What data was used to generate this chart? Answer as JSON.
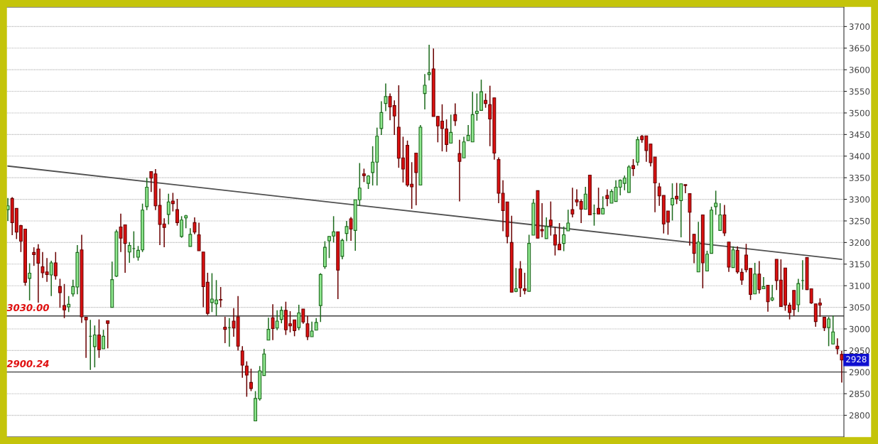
{
  "chart_data": {
    "type": "candlestick",
    "categories": [
      null,
      null,
      null,
      null,
      null,
      null,
      null,
      null,
      null,
      null,
      null,
      null,
      null,
      null,
      null,
      null,
      null,
      null,
      null,
      null,
      null,
      null,
      null,
      null,
      null,
      null,
      null,
      null,
      null,
      null,
      null,
      null,
      null,
      null,
      null,
      null,
      null,
      null,
      null,
      null,
      null,
      null,
      null,
      null,
      null,
      null,
      null,
      null,
      null,
      null,
      null,
      null,
      null,
      null,
      null,
      null,
      null,
      null,
      null,
      null,
      null,
      null,
      null,
      null,
      null,
      null,
      null,
      null,
      null,
      null,
      null,
      null,
      null,
      null,
      null,
      null,
      null,
      null,
      null,
      null,
      null,
      null,
      null,
      null,
      null,
      null,
      null,
      null,
      null,
      null,
      null,
      null,
      null,
      null,
      null,
      null,
      null,
      null,
      null,
      null,
      null,
      null,
      null,
      null,
      null,
      null,
      null,
      null,
      null,
      null,
      null,
      null,
      null,
      null,
      null,
      null,
      null,
      null,
      null,
      null,
      null,
      null,
      null,
      null,
      null,
      null,
      null,
      null,
      null,
      null,
      null,
      null,
      null,
      null,
      null,
      null,
      null,
      null,
      null,
      null,
      null,
      null,
      null,
      null,
      null,
      null,
      null,
      null,
      null,
      null,
      null,
      null,
      null,
      null,
      null,
      null,
      null,
      null,
      null,
      null,
      null,
      null,
      null,
      null,
      null,
      null,
      null,
      null,
      null,
      null,
      null,
      null,
      null,
      null,
      null,
      null,
      null,
      null,
      null,
      null,
      null,
      null,
      null,
      null,
      null,
      null,
      null,
      null,
      null,
      null,
      null,
      null,
      null
    ],
    "ohlc": [
      [
        3276,
        3303,
        3250,
        3285
      ],
      [
        3302,
        3305,
        3217,
        3246
      ],
      [
        3279,
        3279,
        3208,
        3224
      ],
      [
        3239,
        3241,
        3178,
        3203
      ],
      [
        3231,
        3231,
        3100,
        3108
      ],
      [
        3117,
        3152,
        3066,
        3129
      ],
      [
        3177,
        3189,
        3146,
        3172
      ],
      [
        3185,
        3196,
        3061,
        3152
      ],
      [
        3144,
        3178,
        3118,
        3130
      ],
      [
        3132,
        3164,
        3109,
        3126
      ],
      [
        3125,
        3158,
        3076,
        3153
      ],
      [
        3153,
        3178,
        3114,
        3123
      ],
      [
        3098,
        3116,
        3049,
        3084
      ],
      [
        3054,
        3104,
        3025,
        3044
      ],
      [
        3051,
        3076,
        3039,
        3057
      ],
      [
        3081,
        3114,
        3075,
        3098
      ],
      [
        3097,
        3194,
        3080,
        3177
      ],
      [
        3183,
        3218,
        3014,
        3028
      ],
      [
        3027,
        3027,
        2933,
        3021
      ],
      [
        2983,
        3021,
        2905,
        2983
      ],
      [
        2959,
        3008,
        2911,
        2986
      ],
      [
        2986,
        3022,
        2933,
        2952
      ],
      [
        2954,
        2998,
        2954,
        2983
      ],
      [
        3019,
        3019,
        2955,
        3013
      ],
      [
        3050,
        3156,
        3050,
        3114
      ],
      [
        3122,
        3230,
        3120,
        3225
      ],
      [
        3236,
        3267,
        3178,
        3210
      ],
      [
        3241,
        3241,
        3130,
        3198
      ],
      [
        3178,
        3201,
        3153,
        3193
      ],
      [
        3186,
        3226,
        3164,
        3186
      ],
      [
        3166,
        3192,
        3158,
        3182
      ],
      [
        3183,
        3290,
        3178,
        3275
      ],
      [
        3283,
        3350,
        3275,
        3328
      ],
      [
        3364,
        3364,
        3317,
        3349
      ],
      [
        3359,
        3370,
        3275,
        3285
      ],
      [
        3286,
        3325,
        3194,
        3242
      ],
      [
        3243,
        3256,
        3189,
        3235
      ],
      [
        3265,
        3313,
        3242,
        3294
      ],
      [
        3296,
        3315,
        3272,
        3290
      ],
      [
        3276,
        3301,
        3239,
        3246
      ],
      [
        3214,
        3261,
        3211,
        3252
      ],
      [
        3257,
        3264,
        3233,
        3262
      ],
      [
        3191,
        3233,
        3191,
        3219
      ],
      [
        3246,
        3258,
        3219,
        3224
      ],
      [
        3218,
        3246,
        3181,
        3181
      ],
      [
        3178,
        3178,
        3050,
        3098
      ],
      [
        3108,
        3130,
        3032,
        3036
      ],
      [
        3061,
        3129,
        3039,
        3069
      ],
      [
        3058,
        3113,
        3031,
        3067
      ],
      [
        3068,
        3097,
        3050,
        3067
      ],
      [
        3004,
        3028,
        2967,
        2999
      ],
      [
        3003,
        3025,
        2959,
        3003
      ],
      [
        3018,
        3048,
        2982,
        3002
      ],
      [
        3028,
        3076,
        2950,
        2960
      ],
      [
        2949,
        2960,
        2887,
        2916
      ],
      [
        2914,
        2925,
        2843,
        2893
      ],
      [
        2876,
        2908,
        2856,
        2862
      ],
      [
        2787,
        2856,
        2787,
        2839
      ],
      [
        2838,
        2914,
        2834,
        2903
      ],
      [
        2892,
        2954,
        2892,
        2942
      ],
      [
        2974,
        3026,
        2974,
        2999
      ],
      [
        3026,
        3057,
        2974,
        3001
      ],
      [
        3002,
        3043,
        2997,
        3018
      ],
      [
        3022,
        3052,
        3013,
        3043
      ],
      [
        3043,
        3063,
        2986,
        2998
      ],
      [
        3012,
        3041,
        2992,
        3007
      ],
      [
        3021,
        3021,
        2983,
        2996
      ],
      [
        3003,
        3056,
        2997,
        3037
      ],
      [
        3046,
        3046,
        3012,
        3016
      ],
      [
        3012,
        3030,
        2974,
        2982
      ],
      [
        2982,
        3017,
        2982,
        2995
      ],
      [
        2997,
        3025,
        2997,
        3015
      ],
      [
        3054,
        3129,
        3016,
        3126
      ],
      [
        3144,
        3203,
        3139,
        3189
      ],
      [
        3204,
        3214,
        3164,
        3214
      ],
      [
        3215,
        3261,
        3200,
        3225
      ],
      [
        3225,
        3225,
        3069,
        3136
      ],
      [
        3168,
        3209,
        3161,
        3205
      ],
      [
        3221,
        3250,
        3203,
        3237
      ],
      [
        3255,
        3259,
        3204,
        3231
      ],
      [
        3228,
        3299,
        3181,
        3299
      ],
      [
        3299,
        3384,
        3285,
        3326
      ],
      [
        3359,
        3371,
        3340,
        3355
      ],
      [
        3337,
        3356,
        3324,
        3354
      ],
      [
        3362,
        3423,
        3332,
        3386
      ],
      [
        3386,
        3466,
        3332,
        3446
      ],
      [
        3464,
        3527,
        3449,
        3501
      ],
      [
        3522,
        3568,
        3504,
        3538
      ],
      [
        3538,
        3545,
        3483,
        3514
      ],
      [
        3517,
        3529,
        3449,
        3493
      ],
      [
        3467,
        3564,
        3373,
        3395
      ],
      [
        3396,
        3445,
        3339,
        3370
      ],
      [
        3425,
        3436,
        3329,
        3333
      ],
      [
        3335,
        3386,
        3278,
        3329
      ],
      [
        3407,
        3407,
        3286,
        3362
      ],
      [
        3333,
        3472,
        3333,
        3467
      ],
      [
        3545,
        3590,
        3508,
        3564
      ],
      [
        3589,
        3658,
        3575,
        3593
      ],
      [
        3602,
        3649,
        3492,
        3492
      ],
      [
        3492,
        3492,
        3432,
        3470
      ],
      [
        3481,
        3520,
        3411,
        3464
      ],
      [
        3463,
        3485,
        3410,
        3427
      ],
      [
        3430,
        3496,
        3430,
        3455
      ],
      [
        3496,
        3522,
        3470,
        3482
      ],
      [
        3406,
        3438,
        3295,
        3388
      ],
      [
        3396,
        3445,
        3396,
        3433
      ],
      [
        3436,
        3472,
        3436,
        3448
      ],
      [
        3433,
        3549,
        3433,
        3496
      ],
      [
        3499,
        3545,
        3482,
        3504
      ],
      [
        3506,
        3577,
        3506,
        3549
      ],
      [
        3529,
        3545,
        3512,
        3522
      ],
      [
        3519,
        3563,
        3423,
        3486
      ],
      [
        3535,
        3535,
        3392,
        3407
      ],
      [
        3392,
        3397,
        3291,
        3314
      ],
      [
        3314,
        3344,
        3226,
        3274
      ],
      [
        3294,
        3294,
        3198,
        3214
      ],
      [
        3200,
        3262,
        3085,
        3085
      ],
      [
        3087,
        3141,
        3085,
        3093
      ],
      [
        3139,
        3157,
        3074,
        3095
      ],
      [
        3093,
        3130,
        3080,
        3089
      ],
      [
        3087,
        3218,
        3087,
        3198
      ],
      [
        3217,
        3301,
        3217,
        3291
      ],
      [
        3320,
        3320,
        3210,
        3210
      ],
      [
        3230,
        3291,
        3212,
        3227
      ],
      [
        3209,
        3258,
        3209,
        3237
      ],
      [
        3252,
        3295,
        3216,
        3239
      ],
      [
        3218,
        3236,
        3170,
        3194
      ],
      [
        3196,
        3245,
        3183,
        3183
      ],
      [
        3198,
        3237,
        3180,
        3218
      ],
      [
        3227,
        3276,
        3227,
        3245
      ],
      [
        3276,
        3327,
        3258,
        3266
      ],
      [
        3299,
        3323,
        3284,
        3294
      ],
      [
        3295,
        3300,
        3245,
        3277
      ],
      [
        3277,
        3329,
        3277,
        3312
      ],
      [
        3356,
        3356,
        3264,
        3264
      ],
      [
        3267,
        3288,
        3239,
        3267
      ],
      [
        3279,
        3327,
        3266,
        3266
      ],
      [
        3266,
        3307,
        3266,
        3279
      ],
      [
        3309,
        3323,
        3284,
        3302
      ],
      [
        3291,
        3323,
        3291,
        3318
      ],
      [
        3295,
        3344,
        3295,
        3328
      ],
      [
        3328,
        3346,
        3309,
        3344
      ],
      [
        3337,
        3355,
        3321,
        3349
      ],
      [
        3316,
        3379,
        3316,
        3375
      ],
      [
        3378,
        3393,
        3354,
        3371
      ],
      [
        3386,
        3445,
        3378,
        3438
      ],
      [
        3446,
        3449,
        3431,
        3438
      ],
      [
        3447,
        3447,
        3387,
        3413
      ],
      [
        3428,
        3428,
        3376,
        3385
      ],
      [
        3398,
        3398,
        3270,
        3338
      ],
      [
        3329,
        3338,
        3285,
        3308
      ],
      [
        3309,
        3309,
        3221,
        3243
      ],
      [
        3273,
        3273,
        3218,
        3247
      ],
      [
        3287,
        3337,
        3251,
        3302
      ],
      [
        3307,
        3338,
        3289,
        3301
      ],
      [
        3297,
        3336,
        3212,
        3336
      ],
      [
        3334,
        3334,
        3314,
        3332
      ],
      [
        3313,
        3313,
        3193,
        3270
      ],
      [
        3219,
        3219,
        3152,
        3175
      ],
      [
        3132,
        3248,
        3132,
        3201
      ],
      [
        3264,
        3264,
        3094,
        3153
      ],
      [
        3134,
        3181,
        3134,
        3173
      ],
      [
        3175,
        3283,
        3175,
        3275
      ],
      [
        3283,
        3320,
        3264,
        3291
      ],
      [
        3228,
        3291,
        3228,
        3264
      ],
      [
        3264,
        3287,
        3215,
        3222
      ],
      [
        3201,
        3201,
        3132,
        3143
      ],
      [
        3142,
        3191,
        3142,
        3183
      ],
      [
        3182,
        3191,
        3128,
        3132
      ],
      [
        3131,
        3140,
        3102,
        3113
      ],
      [
        3171,
        3197,
        3131,
        3137
      ],
      [
        3140,
        3140,
        3067,
        3080
      ],
      [
        3081,
        3153,
        3081,
        3127
      ],
      [
        3127,
        3157,
        3082,
        3091
      ],
      [
        3093,
        3120,
        3093,
        3098
      ],
      [
        3101,
        3101,
        3040,
        3063
      ],
      [
        3067,
        3102,
        3064,
        3072
      ],
      [
        3161,
        3161,
        3090,
        3112
      ],
      [
        3113,
        3161,
        3052,
        3052
      ],
      [
        3141,
        3141,
        3042,
        3055
      ],
      [
        3055,
        3061,
        3022,
        3038
      ],
      [
        3089,
        3089,
        3030,
        3045
      ],
      [
        3056,
        3116,
        3039,
        3105
      ],
      [
        3112,
        3159,
        3091,
        3112
      ],
      [
        3165,
        3165,
        3090,
        3091
      ],
      [
        3093,
        3093,
        3058,
        3060
      ],
      [
        3058,
        3058,
        3005,
        3017
      ],
      [
        3060,
        3071,
        3028,
        3055
      ],
      [
        3027,
        3027,
        2995,
        3003
      ],
      [
        3003,
        3028,
        2960,
        3023
      ],
      [
        2965,
        3031,
        2965,
        2993
      ],
      [
        2960,
        2978,
        2941,
        2954
      ],
      [
        2941,
        2949,
        2876,
        2928
      ]
    ],
    "series": [
      {
        "type": "line",
        "values": [
          3377,
          null,
          null,
          null,
          null,
          null,
          null,
          null,
          null,
          null,
          null,
          null,
          null,
          null,
          null,
          null,
          null,
          null,
          null,
          null,
          null,
          null,
          null,
          null,
          null,
          null,
          null,
          null,
          null,
          null,
          null,
          null,
          null,
          null,
          null,
          null,
          null,
          null,
          null,
          null,
          null,
          null,
          null,
          null,
          null,
          null,
          null,
          null,
          null,
          null,
          null,
          null,
          null,
          null,
          null,
          null,
          null,
          null,
          null,
          null,
          null,
          null,
          null,
          null,
          null,
          null,
          null,
          null,
          null,
          null,
          null,
          null,
          null,
          null,
          null,
          null,
          null,
          null,
          null,
          null,
          null,
          null,
          null,
          null,
          null,
          null,
          null,
          null,
          null,
          null,
          null,
          null,
          null,
          null,
          null,
          null,
          null,
          null,
          null,
          null,
          null,
          null,
          null,
          null,
          null,
          null,
          null,
          null,
          null,
          null,
          null,
          null,
          null,
          null,
          null,
          null,
          null,
          null,
          null,
          null,
          null,
          null,
          null,
          null,
          null,
          null,
          null,
          null,
          null,
          null,
          null,
          null,
          null,
          null,
          null,
          null,
          null,
          null,
          null,
          null,
          null,
          null,
          null,
          null,
          null,
          null,
          null,
          null,
          null,
          null,
          null,
          null,
          null,
          null,
          null,
          null,
          null,
          null,
          null,
          null,
          null,
          null,
          null,
          null,
          null,
          null,
          null,
          null,
          null,
          null,
          null,
          null,
          null,
          null,
          null,
          null,
          null,
          null,
          null,
          null,
          null,
          null,
          null,
          null,
          null,
          null,
          null,
          null,
          null,
          null,
          null,
          null,
          3161
        ],
        "color": "#505050"
      }
    ],
    "ylim": [
      2750,
      3745
    ],
    "yticks": [
      2800,
      2850,
      2900,
      2950,
      3000,
      3050,
      3100,
      3150,
      3200,
      3250,
      3300,
      3350,
      3400,
      3450,
      3500,
      3550,
      3600,
      3650,
      3700
    ],
    "grid": "y",
    "tick_labels": "y",
    "ref_lines": [
      {
        "axis": "y",
        "value": 3030,
        "label": "3030.00",
        "color": "#404040"
      },
      {
        "axis": "y",
        "value": 2900.24,
        "label": "2900.24",
        "color": "#404040"
      }
    ],
    "annotations": [
      {
        "text": "2928",
        "y": 2928
      }
    ]
  }
}
